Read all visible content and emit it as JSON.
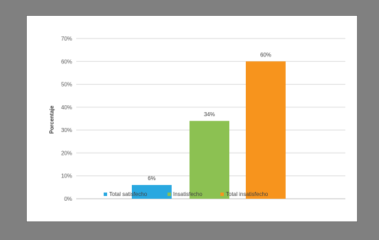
{
  "chart_data": {
    "type": "bar",
    "categories": [
      "Total satisfecho",
      "Insatisfecho",
      "Total insatisfecho"
    ],
    "values": [
      6,
      34,
      60
    ],
    "data_labels": [
      "6%",
      "34%",
      "60%"
    ],
    "ylabel": "Porcentaje",
    "xlabel": "",
    "title": "",
    "ylim": [
      0,
      70
    ],
    "yticks": [
      "0%",
      "10%",
      "20%",
      "30%",
      "40%",
      "50%",
      "60%",
      "70%"
    ],
    "colors": [
      "#29a8e0",
      "#8cc152",
      "#f7941d"
    ],
    "legend": {
      "placement": "bottom",
      "entries": [
        "Total satisfecho",
        "Insatisfecho",
        "Total insatisfecho"
      ]
    },
    "grid": true
  }
}
